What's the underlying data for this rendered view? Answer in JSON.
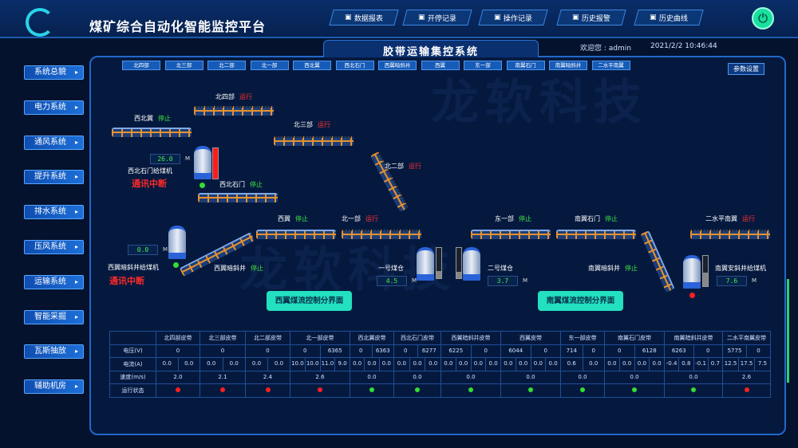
{
  "app": {
    "title": "煤矿综合自动化智能监控平台",
    "watermark": "龙软科技 LongRuan Technologies"
  },
  "toolbar": [
    {
      "label": "数据报表",
      "icon": "database-icon"
    },
    {
      "label": "开停记录",
      "icon": "power-icon"
    },
    {
      "label": "操作记录",
      "icon": "clipboard-icon"
    },
    {
      "label": "历史报警",
      "icon": "bell-icon"
    },
    {
      "label": "历史曲线",
      "icon": "chart-icon"
    }
  ],
  "header": {
    "subtitle": "胶带运输集控系统",
    "welcome": "欢迎您 : admin",
    "datetime": "2021/2/2   10:46:44"
  },
  "tabs": [
    "北四部",
    "北三部",
    "北二部",
    "北一部",
    "西北翼",
    "西北石门",
    "西翼暗斜井",
    "西翼",
    "东一部",
    "南翼石门",
    "南翼暗斜井",
    "二水平南翼"
  ],
  "params_button": "参数设置",
  "sidebar": [
    "系统总貌",
    "电力系统",
    "通风系统",
    "提升系统",
    "排水系统",
    "压风系统",
    "运输系统",
    "智能采掘",
    "瓦斯抽放",
    "辅助机房"
  ],
  "belts": [
    {
      "name": "北四部",
      "status": "运行",
      "running": true
    },
    {
      "name": "西北翼",
      "status": "停止",
      "running": false
    },
    {
      "name": "北三部",
      "status": "运行",
      "running": true
    },
    {
      "name": "北二部",
      "status": "运行",
      "running": true
    },
    {
      "name": "西北石门",
      "status": "停止",
      "running": false
    },
    {
      "name": "西翼",
      "status": "停止",
      "running": false
    },
    {
      "name": "北一部",
      "status": "运行",
      "running": true
    },
    {
      "name": "西翼暗斜井",
      "status": "停止",
      "running": false
    },
    {
      "name": "东一部",
      "status": "停止",
      "running": false
    },
    {
      "name": "南翼石门",
      "status": "停止",
      "running": false
    },
    {
      "name": "南翼暗斜井",
      "status": "停止",
      "running": false
    },
    {
      "name": "二水平南翼",
      "status": "运行",
      "running": true
    }
  ],
  "feeders": [
    {
      "name": "西北石门给煤机",
      "value": "26.0",
      "unit": "M",
      "comm": "通讯中断",
      "dot": "#33dd33",
      "level": 1.0
    },
    {
      "name": "西翼暗斜井给煤机",
      "value": "0.0",
      "unit": "M",
      "comm": "通讯中断",
      "dot": "#33dd33"
    },
    {
      "name": "南翼安斜井给煤机",
      "value": "7.6",
      "unit": "M",
      "dot": "#ff2020",
      "level": 0.45
    }
  ],
  "bunkers": [
    {
      "name": "一号煤仓",
      "value": "4.5",
      "unit": "M",
      "level": 0.25
    },
    {
      "name": "二号煤仓",
      "value": "3.7",
      "unit": "M",
      "level": 0.2
    }
  ],
  "controls": {
    "west": "西翼煤流控制分界面",
    "south": "南翼煤流控制分界面"
  },
  "table": {
    "row_labels": [
      "电压(V)",
      "电流(A)",
      "速度(m/s)",
      "运行状态"
    ],
    "columns": [
      {
        "name": "北四部皮带",
        "voltage": [
          "0"
        ],
        "current": [
          "0.0",
          "0.0"
        ],
        "speed": "2.0",
        "running": true
      },
      {
        "name": "北三部皮带",
        "voltage": [
          "0"
        ],
        "current": [
          "0.0",
          "0.0"
        ],
        "speed": "2.1",
        "running": true
      },
      {
        "name": "北二部皮带",
        "voltage": [
          "0"
        ],
        "current": [
          "0.0",
          "0.0"
        ],
        "speed": "2.4",
        "running": true
      },
      {
        "name": "北一部皮带",
        "voltage": [
          "0",
          "6365"
        ],
        "current": [
          "10.0",
          "10.0",
          "11.0",
          "9.0"
        ],
        "speed": "2.6",
        "running": true
      },
      {
        "name": "西北翼皮带",
        "voltage": [
          "0",
          "6363"
        ],
        "current": [
          "0.0",
          "0.0",
          "0.0"
        ],
        "speed": "0.0",
        "running": false
      },
      {
        "name": "西北石门皮带",
        "voltage": [
          "0",
          "6277"
        ],
        "current": [
          "0.0",
          "0.0",
          "0.0"
        ],
        "speed": "0.0",
        "running": false
      },
      {
        "name": "西翼暗斜井皮带",
        "voltage": [
          "6225",
          "0"
        ],
        "current": [
          "0.0",
          "0.0",
          "0.0",
          "0.0"
        ],
        "speed": "0.0",
        "running": false
      },
      {
        "name": "西翼皮带",
        "voltage": [
          "6044",
          "0"
        ],
        "current": [
          "0.0",
          "0.0",
          "0.0",
          "0.0"
        ],
        "speed": "0.0",
        "running": false
      },
      {
        "name": "东一部皮带",
        "voltage": [
          "714",
          "0"
        ],
        "current": [
          "0.6",
          "0.0"
        ],
        "speed": "0.0",
        "running": false
      },
      {
        "name": "南翼石门皮带",
        "voltage": [
          "0",
          "6128"
        ],
        "current": [
          "0.0",
          "0.0",
          "0.0",
          "0.0"
        ],
        "speed": "0.0",
        "running": false
      },
      {
        "name": "南翼暗斜井皮带",
        "voltage": [
          "6263",
          "0"
        ],
        "current": [
          "-0.4",
          "0.8",
          "-0.1",
          "0.7"
        ],
        "speed": "0.0",
        "running": false
      },
      {
        "name": "二水平南翼皮带",
        "voltage": [
          "5775",
          "0"
        ],
        "current": [
          "12.5",
          "17.5",
          "7.5"
        ],
        "speed": "2.6",
        "running": true
      }
    ]
  },
  "colors": {
    "running": "#ff2020",
    "stopped": "#33dd33",
    "accent": "#22e0c0"
  }
}
